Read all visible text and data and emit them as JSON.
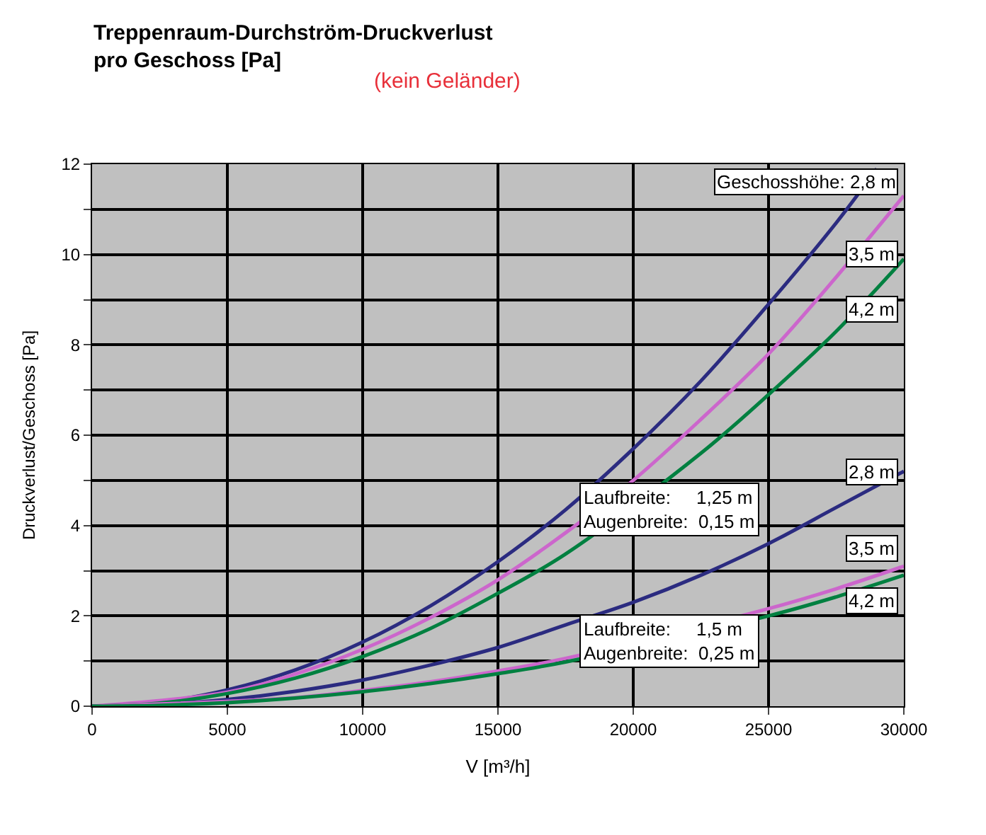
{
  "chart_data": {
    "type": "line",
    "title": "Treppenraum-Durchström-Druckverlust\npro Geschoss [Pa]",
    "subtitle": "(kein Geländer)",
    "xlabel": "V [m³/h]",
    "ylabel": "Druckverlust/Geschoss [Pa]",
    "annotations": [
      "Laufbreite:     1,25 m\nAugenbreite:  0,15 m",
      "Laufbreite:     1,5 m\nAugenbreite:  0,25 m"
    ],
    "x": [
      0,
      2500,
      5000,
      7500,
      10000,
      12500,
      15000,
      17500,
      20000,
      22500,
      25000,
      27500,
      30000
    ],
    "series": [
      {
        "name": "Geschosshöhe: 2,8 m",
        "color": "#2b2b80",
        "x": [
          0,
          2500,
          5000,
          7500,
          10000,
          12500,
          15000,
          17500,
          20000,
          22500,
          25000,
          27500,
          29000
        ],
        "values": [
          0,
          0.09,
          0.36,
          0.8,
          1.42,
          2.22,
          3.2,
          4.35,
          5.7,
          7.2,
          8.9,
          10.7,
          11.9
        ]
      },
      {
        "name": "3,5 m",
        "color": "#cc66cc",
        "x": [
          0,
          5000,
          7500,
          10000,
          12500,
          15000,
          17500,
          20000,
          22500,
          25000,
          27500,
          30000
        ],
        "values": [
          0,
          0.31,
          0.71,
          1.26,
          1.96,
          2.8,
          3.84,
          5.0,
          6.35,
          7.8,
          9.5,
          11.3
        ]
      },
      {
        "name": "4,2 m",
        "color": "#008040",
        "x": [
          0,
          2500,
          5000,
          7500,
          10000,
          12500,
          15000,
          17500,
          22500,
          25000,
          27500,
          30000
        ],
        "values": [
          0,
          0.07,
          0.28,
          0.62,
          1.1,
          1.72,
          2.5,
          3.37,
          5.6,
          6.9,
          8.3,
          9.9
        ]
      },
      {
        "name": "2,8 m",
        "color": "#2b2b80",
        "values": [
          0,
          0.04,
          0.15,
          0.33,
          0.58,
          0.91,
          1.3,
          1.8,
          2.3,
          2.9,
          3.6,
          4.4,
          5.2
        ]
      },
      {
        "name": "3,5 m",
        "color": "#cc66cc",
        "x": [
          0,
          7500,
          10000,
          12500,
          15000,
          17500,
          25000,
          27500,
          30000
        ],
        "values": [
          0,
          0.19,
          0.35,
          0.54,
          0.78,
          1.06,
          2.16,
          2.6,
          3.1
        ]
      },
      {
        "name": "4,2 m",
        "color": "#008040",
        "x": [
          0,
          2500,
          5000,
          7500,
          10000,
          12500,
          15000,
          17500,
          25000,
          27500,
          30000
        ],
        "values": [
          0,
          0.02,
          0.08,
          0.18,
          0.32,
          0.5,
          0.72,
          0.98,
          2.0,
          2.42,
          2.9
        ]
      }
    ],
    "xlim": [
      0,
      30000
    ],
    "xticks": [
      0,
      5000,
      10000,
      15000,
      20000,
      25000,
      30000
    ],
    "ylim": [
      0,
      12
    ],
    "yticks": [
      0,
      {
        "value": 1,
        "label": null
      },
      2,
      {
        "value": 3,
        "label": null
      },
      4,
      {
        "value": 5,
        "label": null
      },
      6,
      {
        "value": 7,
        "label": null
      },
      8,
      {
        "value": 9,
        "label": null
      },
      10,
      {
        "value": 11,
        "label": null
      },
      12
    ],
    "grid": true,
    "legend": false,
    "marker": "none",
    "line_style": "solid"
  }
}
